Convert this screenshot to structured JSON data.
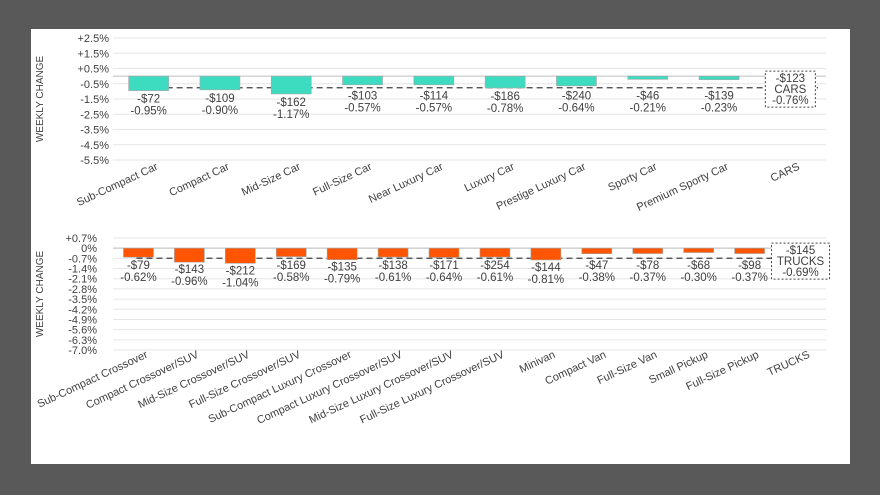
{
  "chart_data": [
    {
      "type": "bar",
      "id": "cars",
      "ylabel": "WEEKLY CHANGE",
      "ylim": [
        -5.5,
        2.5
      ],
      "yticks": [
        "+2.5%",
        "+1.5%",
        "+0.5%",
        "-0.5%",
        "-1.5%",
        "-2.5%",
        "-3.5%",
        "-4.5%",
        "-5.5%"
      ],
      "ytick_values": [
        2.5,
        1.5,
        0.5,
        -0.5,
        -1.5,
        -2.5,
        -3.5,
        -4.5,
        -5.5
      ],
      "bar_color": "#3DDBC0",
      "categories": [
        "Sub-Compact Car",
        "Compact Car",
        "Mid-Size Car",
        "Full-Size Car",
        "Near Luxury Car",
        "Luxury Car",
        "Prestige Luxury Car",
        "Sporty Car",
        "Premium Sporty Car",
        "CARS"
      ],
      "values": [
        -0.95,
        -0.9,
        -1.17,
        -0.57,
        -0.57,
        -0.78,
        -0.64,
        -0.21,
        -0.23,
        null
      ],
      "dollar_labels": [
        "-$72",
        "-$109",
        "-$162",
        "-$103",
        "-$114",
        "-$186",
        "-$240",
        "-$46",
        "-$139",
        "-$123"
      ],
      "pct_labels": [
        "-0.95%",
        "-0.90%",
        "-1.17%",
        "-0.57%",
        "-0.57%",
        "-0.78%",
        "-0.64%",
        "-0.21%",
        "-0.23%",
        "-0.76%"
      ],
      "summary": {
        "label": "CARS",
        "dollar": "-$123",
        "pct": "-0.76%",
        "value": -0.76
      },
      "grid": true
    },
    {
      "type": "bar",
      "id": "trucks",
      "ylabel": "WEEKLY CHANGE",
      "ylim": [
        -7.0,
        0.7
      ],
      "yticks": [
        "+0.7%",
        "0%",
        "-0.7%",
        "-1.4%",
        "-2.1%",
        "-2.8%",
        "-3.5%",
        "-4.2%",
        "-4.9%",
        "-5.6%",
        "-6.3%",
        "-7.0%"
      ],
      "ytick_values": [
        0.7,
        0,
        -0.7,
        -1.4,
        -2.1,
        -2.8,
        -3.5,
        -4.2,
        -4.9,
        -5.6,
        -6.3,
        -7.0
      ],
      "bar_color": "#FF5500",
      "categories": [
        "Sub-Compact Crossover",
        "Compact Crossover/SUV",
        "Mid-Size Crossover/SUV",
        "Full-Size Crossover/SUV",
        "Sub-Compact Luxury Crossover",
        "Compact Luxury Crossover/SUV",
        "Mid-Size Luxury Crossover/SUV",
        "Full-Size Luxury Crossover/SUV",
        "Minivan",
        "Compact Van",
        "Full-Size Van",
        "Small Pickup",
        "Full-Size Pickup",
        "TRUCKS"
      ],
      "values": [
        -0.62,
        -0.96,
        -1.04,
        -0.58,
        -0.79,
        -0.61,
        -0.64,
        -0.61,
        -0.81,
        -0.38,
        -0.37,
        -0.3,
        -0.37,
        null
      ],
      "dollar_labels": [
        "-$79",
        "-$143",
        "-$212",
        "-$169",
        "-$135",
        "-$138",
        "-$171",
        "-$254",
        "-$144",
        "-$47",
        "-$78",
        "-$68",
        "-$98",
        "-$145"
      ],
      "pct_labels": [
        "-0.62%",
        "-0.96%",
        "-1.04%",
        "-0.58%",
        "-0.79%",
        "-0.61%",
        "-0.64%",
        "-0.61%",
        "-0.81%",
        "-0.38%",
        "-0.37%",
        "-0.30%",
        "-0.37%",
        "-0.69%"
      ],
      "summary": {
        "label": "TRUCKS",
        "dollar": "-$145",
        "pct": "-0.69%",
        "value": -0.69
      },
      "grid": true
    }
  ]
}
